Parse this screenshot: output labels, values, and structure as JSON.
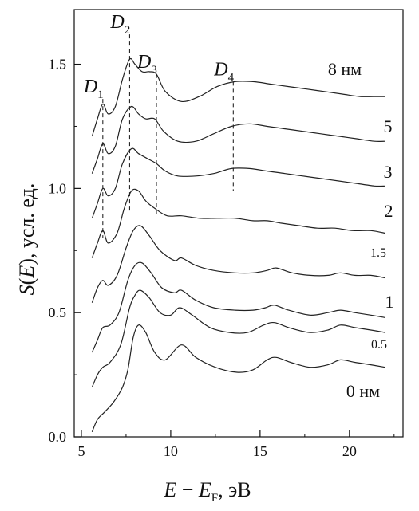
{
  "chart_data": {
    "type": "line",
    "xlabel": "E − E_F, эВ",
    "ylabel": "S(E), усл. ед.",
    "xlim": [
      4.6,
      23
    ],
    "ylim": [
      0.0,
      1.72
    ],
    "x_ticks": [
      "5",
      "10",
      "15",
      "20"
    ],
    "y_ticks": [
      "0.0",
      "0.5",
      "1.0",
      "1.5"
    ],
    "grid": false,
    "legend": "none",
    "series": [
      {
        "name": "0 нм",
        "points": [
          [
            5.6,
            0.02
          ],
          [
            5.9,
            0.07
          ],
          [
            6.3,
            0.1
          ],
          [
            6.8,
            0.14
          ],
          [
            7.3,
            0.2
          ],
          [
            7.6,
            0.27
          ],
          [
            7.9,
            0.4
          ],
          [
            8.2,
            0.45
          ],
          [
            8.6,
            0.42
          ],
          [
            9.1,
            0.34
          ],
          [
            9.7,
            0.31
          ],
          [
            10.6,
            0.37
          ],
          [
            11.4,
            0.32
          ],
          [
            12.5,
            0.28
          ],
          [
            13.7,
            0.26
          ],
          [
            14.6,
            0.27
          ],
          [
            15.4,
            0.31
          ],
          [
            15.9,
            0.32
          ],
          [
            16.7,
            0.3
          ],
          [
            17.8,
            0.28
          ],
          [
            18.8,
            0.29
          ],
          [
            19.5,
            0.31
          ],
          [
            20.3,
            0.3
          ],
          [
            21.2,
            0.29
          ],
          [
            22.0,
            0.28
          ]
        ]
      },
      {
        "name": "0.5",
        "points": [
          [
            5.6,
            0.2
          ],
          [
            5.9,
            0.25
          ],
          [
            6.2,
            0.28
          ],
          [
            6.6,
            0.3
          ],
          [
            7.2,
            0.37
          ],
          [
            7.7,
            0.52
          ],
          [
            8.0,
            0.57
          ],
          [
            8.3,
            0.59
          ],
          [
            8.8,
            0.56
          ],
          [
            9.4,
            0.5
          ],
          [
            10.0,
            0.49
          ],
          [
            10.5,
            0.52
          ],
          [
            11.2,
            0.49
          ],
          [
            12.2,
            0.44
          ],
          [
            13.3,
            0.42
          ],
          [
            14.3,
            0.42
          ],
          [
            15.2,
            0.45
          ],
          [
            15.8,
            0.46
          ],
          [
            16.6,
            0.44
          ],
          [
            17.8,
            0.42
          ],
          [
            18.8,
            0.43
          ],
          [
            19.5,
            0.45
          ],
          [
            20.3,
            0.44
          ],
          [
            21.2,
            0.43
          ],
          [
            22.0,
            0.42
          ]
        ]
      },
      {
        "name": "1",
        "points": [
          [
            5.6,
            0.34
          ],
          [
            5.9,
            0.39
          ],
          [
            6.2,
            0.44
          ],
          [
            6.6,
            0.45
          ],
          [
            7.1,
            0.5
          ],
          [
            7.6,
            0.63
          ],
          [
            8.0,
            0.69
          ],
          [
            8.4,
            0.7
          ],
          [
            8.9,
            0.66
          ],
          [
            9.5,
            0.6
          ],
          [
            10.2,
            0.58
          ],
          [
            10.6,
            0.59
          ],
          [
            11.4,
            0.55
          ],
          [
            12.4,
            0.52
          ],
          [
            13.6,
            0.51
          ],
          [
            14.6,
            0.51
          ],
          [
            15.3,
            0.52
          ],
          [
            15.8,
            0.53
          ],
          [
            16.6,
            0.51
          ],
          [
            17.8,
            0.49
          ],
          [
            18.8,
            0.5
          ],
          [
            19.5,
            0.51
          ],
          [
            20.3,
            0.5
          ],
          [
            21.2,
            0.49
          ],
          [
            22.0,
            0.48
          ]
        ]
      },
      {
        "name": "1.5",
        "points": [
          [
            5.6,
            0.54
          ],
          [
            5.9,
            0.6
          ],
          [
            6.2,
            0.63
          ],
          [
            6.5,
            0.61
          ],
          [
            7.0,
            0.65
          ],
          [
            7.5,
            0.76
          ],
          [
            7.9,
            0.83
          ],
          [
            8.3,
            0.85
          ],
          [
            8.8,
            0.81
          ],
          [
            9.4,
            0.75
          ],
          [
            10.2,
            0.71
          ],
          [
            10.6,
            0.72
          ],
          [
            11.4,
            0.69
          ],
          [
            12.4,
            0.67
          ],
          [
            13.6,
            0.66
          ],
          [
            14.6,
            0.66
          ],
          [
            15.4,
            0.67
          ],
          [
            15.9,
            0.68
          ],
          [
            16.8,
            0.66
          ],
          [
            17.8,
            0.65
          ],
          [
            18.8,
            0.65
          ],
          [
            19.5,
            0.66
          ],
          [
            20.3,
            0.65
          ],
          [
            21.2,
            0.65
          ],
          [
            22.0,
            0.64
          ]
        ]
      },
      {
        "name": "2",
        "points": [
          [
            5.6,
            0.72
          ],
          [
            5.9,
            0.78
          ],
          [
            6.2,
            0.83
          ],
          [
            6.5,
            0.78
          ],
          [
            7.0,
            0.82
          ],
          [
            7.4,
            0.92
          ],
          [
            7.8,
            0.99
          ],
          [
            8.2,
            0.99
          ],
          [
            8.6,
            0.95
          ],
          [
            9.1,
            0.92
          ],
          [
            9.8,
            0.89
          ],
          [
            10.6,
            0.89
          ],
          [
            11.6,
            0.88
          ],
          [
            12.6,
            0.88
          ],
          [
            13.6,
            0.88
          ],
          [
            14.6,
            0.87
          ],
          [
            15.4,
            0.87
          ],
          [
            16.2,
            0.86
          ],
          [
            17.2,
            0.85
          ],
          [
            18.2,
            0.84
          ],
          [
            19.2,
            0.84
          ],
          [
            20.2,
            0.83
          ],
          [
            21.2,
            0.83
          ],
          [
            22.0,
            0.82
          ]
        ]
      },
      {
        "name": "3",
        "points": [
          [
            5.6,
            0.88
          ],
          [
            5.9,
            0.94
          ],
          [
            6.2,
            1.0
          ],
          [
            6.5,
            0.97
          ],
          [
            6.9,
            1.0
          ],
          [
            7.3,
            1.1
          ],
          [
            7.8,
            1.16
          ],
          [
            8.2,
            1.14
          ],
          [
            8.7,
            1.12
          ],
          [
            9.2,
            1.1
          ],
          [
            9.7,
            1.07
          ],
          [
            10.4,
            1.05
          ],
          [
            11.4,
            1.05
          ],
          [
            12.4,
            1.06
          ],
          [
            13.4,
            1.08
          ],
          [
            14.4,
            1.08
          ],
          [
            15.4,
            1.07
          ],
          [
            16.4,
            1.06
          ],
          [
            17.4,
            1.05
          ],
          [
            18.4,
            1.04
          ],
          [
            19.4,
            1.03
          ],
          [
            20.4,
            1.02
          ],
          [
            21.4,
            1.01
          ],
          [
            22.0,
            1.01
          ]
        ]
      },
      {
        "name": "5",
        "points": [
          [
            5.6,
            1.06
          ],
          [
            5.9,
            1.12
          ],
          [
            6.2,
            1.18
          ],
          [
            6.5,
            1.14
          ],
          [
            6.9,
            1.17
          ],
          [
            7.3,
            1.28
          ],
          [
            7.8,
            1.33
          ],
          [
            8.2,
            1.3
          ],
          [
            8.6,
            1.28
          ],
          [
            9.1,
            1.28
          ],
          [
            9.6,
            1.23
          ],
          [
            10.4,
            1.19
          ],
          [
            11.4,
            1.19
          ],
          [
            12.4,
            1.22
          ],
          [
            13.4,
            1.25
          ],
          [
            14.4,
            1.26
          ],
          [
            15.4,
            1.25
          ],
          [
            16.4,
            1.24
          ],
          [
            17.4,
            1.23
          ],
          [
            18.4,
            1.22
          ],
          [
            19.4,
            1.21
          ],
          [
            20.4,
            1.2
          ],
          [
            21.4,
            1.19
          ],
          [
            22.0,
            1.19
          ]
        ]
      },
      {
        "name": "8 нм",
        "points": [
          [
            5.6,
            1.21
          ],
          [
            5.9,
            1.28
          ],
          [
            6.2,
            1.34
          ],
          [
            6.5,
            1.3
          ],
          [
            6.9,
            1.33
          ],
          [
            7.3,
            1.44
          ],
          [
            7.7,
            1.52
          ],
          [
            8.0,
            1.5
          ],
          [
            8.4,
            1.47
          ],
          [
            8.8,
            1.47
          ],
          [
            9.2,
            1.46
          ],
          [
            9.7,
            1.39
          ],
          [
            10.6,
            1.35
          ],
          [
            11.6,
            1.37
          ],
          [
            12.6,
            1.41
          ],
          [
            13.6,
            1.43
          ],
          [
            14.6,
            1.43
          ],
          [
            15.6,
            1.42
          ],
          [
            16.6,
            1.41
          ],
          [
            17.6,
            1.4
          ],
          [
            18.6,
            1.39
          ],
          [
            19.6,
            1.38
          ],
          [
            20.6,
            1.37
          ],
          [
            21.6,
            1.37
          ],
          [
            22.0,
            1.37
          ]
        ]
      }
    ],
    "series_labels": [
      "0 нм",
      "0.5",
      "1",
      "1.5",
      "2",
      "3",
      "5",
      "8 нм"
    ],
    "markers": [
      {
        "label": "D",
        "sub": "1",
        "x": 6.2,
        "y_top": 1.36,
        "y_bottom": 0.8
      },
      {
        "label": "D",
        "sub": "2",
        "x": 7.7,
        "y_top": 1.62,
        "y_bottom": 0.9
      },
      {
        "label": "D",
        "sub": "3",
        "x": 9.2,
        "y_top": 1.46,
        "y_bottom": 0.88
      },
      {
        "label": "D",
        "sub": "4",
        "x": 13.5,
        "y_top": 1.43,
        "y_bottom": 0.99
      }
    ]
  }
}
